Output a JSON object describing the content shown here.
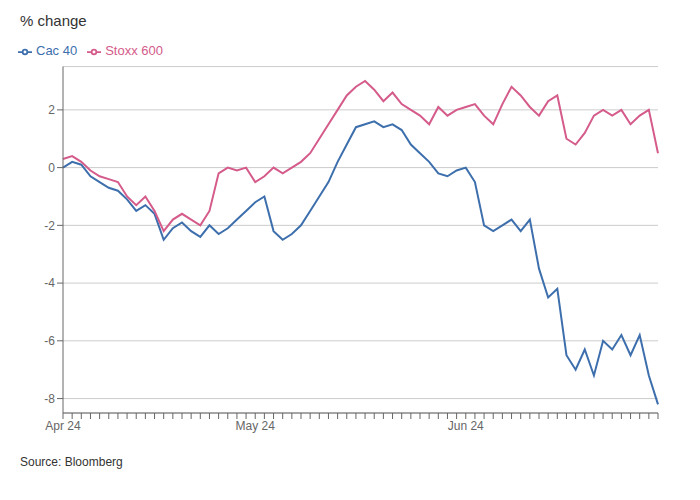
{
  "chart_data": {
    "type": "line",
    "title": "% change",
    "annotations": [
      "Source: Bloomberg"
    ],
    "categories": [
      "Apr 24",
      null,
      null,
      null,
      null,
      null,
      null,
      null,
      null,
      null,
      null,
      null,
      null,
      null,
      null,
      null,
      null,
      null,
      null,
      null,
      null,
      "May 24",
      null,
      null,
      null,
      null,
      null,
      null,
      null,
      null,
      null,
      null,
      null,
      null,
      null,
      null,
      null,
      null,
      null,
      null,
      null,
      null,
      null,
      null,
      "Jun 24",
      null,
      null,
      null,
      null,
      null,
      null,
      null,
      null,
      null,
      null,
      null,
      null,
      null,
      null,
      null,
      null,
      null,
      null,
      null,
      null,
      null
    ],
    "series": [
      {
        "name": "Cac 40",
        "color": "#3d6fad",
        "values": [
          0.0,
          0.2,
          0.1,
          -0.3,
          -0.5,
          -0.7,
          -0.8,
          -1.1,
          -1.5,
          -1.3,
          -1.6,
          -2.5,
          -2.1,
          -1.9,
          -2.2,
          -2.4,
          -2.0,
          -2.3,
          -2.1,
          -1.8,
          -1.5,
          -1.2,
          -1.0,
          -2.2,
          -2.5,
          -2.3,
          -2.0,
          -1.5,
          -1.0,
          -0.5,
          0.2,
          0.8,
          1.4,
          1.5,
          1.6,
          1.4,
          1.5,
          1.3,
          0.8,
          0.5,
          0.2,
          -0.2,
          -0.3,
          -0.1,
          0.0,
          -0.5,
          -2.0,
          -2.2,
          -2.0,
          -1.8,
          -2.2,
          -1.8,
          -3.5,
          -4.5,
          -4.2,
          -6.5,
          -7.0,
          -6.3,
          -7.2,
          -6.0,
          -6.3,
          -5.8,
          -6.5,
          -5.8,
          -7.2,
          -8.2
        ]
      },
      {
        "name": "Stoxx 600",
        "color": "#d45b8a",
        "values": [
          0.3,
          0.4,
          0.2,
          -0.1,
          -0.3,
          -0.4,
          -0.5,
          -1.0,
          -1.3,
          -1.0,
          -1.5,
          -2.2,
          -1.8,
          -1.6,
          -1.8,
          -2.0,
          -1.5,
          -0.2,
          0.0,
          -0.1,
          0.0,
          -0.5,
          -0.3,
          0.0,
          -0.2,
          0.0,
          0.2,
          0.5,
          1.0,
          1.5,
          2.0,
          2.5,
          2.8,
          3.0,
          2.7,
          2.3,
          2.6,
          2.2,
          2.0,
          1.8,
          1.5,
          2.1,
          1.8,
          2.0,
          2.1,
          2.2,
          1.8,
          1.5,
          2.2,
          2.8,
          2.5,
          2.1,
          1.8,
          2.3,
          2.5,
          1.0,
          0.8,
          1.2,
          1.8,
          2.0,
          1.8,
          2.0,
          1.5,
          1.8,
          2.0,
          0.5
        ]
      }
    ],
    "ylim": [
      -8.5,
      3.5
    ],
    "yticks": [
      -8,
      -6,
      -4,
      -2,
      0,
      2
    ],
    "grid": true,
    "legend": "top left"
  }
}
